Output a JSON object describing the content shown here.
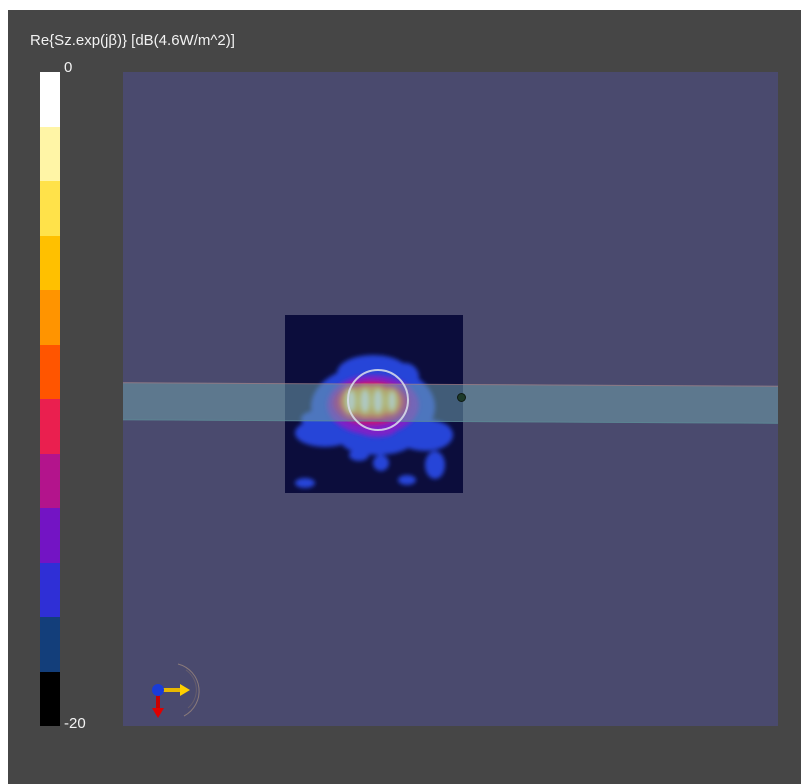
{
  "colorbar": {
    "title": "Re{Sz.exp(jβ)} [dB(4.6W/m^2)]",
    "max_label": "0",
    "min_label": "-20",
    "colors": [
      "#ffffff",
      "#fff5a6",
      "#ffe24a",
      "#ffc000",
      "#ff9400",
      "#ff5500",
      "#ea1f4f",
      "#b3148c",
      "#7314c4",
      "#2f2fd6",
      "#133e7a",
      "#000000"
    ]
  },
  "scene": {
    "background_color": "#4a4a6e",
    "frame_color": "#464646",
    "waveguide_color": "#6e9eaa",
    "icons": [
      "axis-triad-icon"
    ]
  }
}
